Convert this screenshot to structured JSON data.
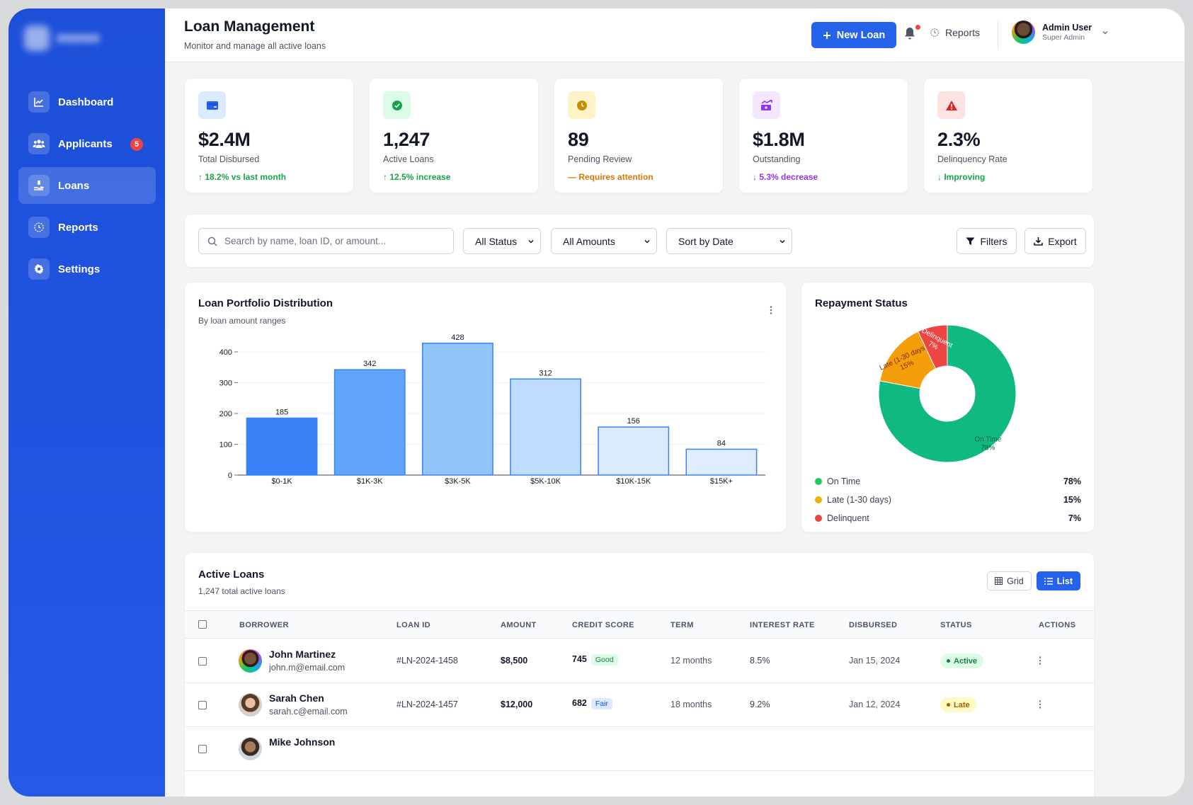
{
  "sidebar": {
    "items": [
      {
        "label": "Dashboard",
        "icon": "chart-line-icon"
      },
      {
        "label": "Applicants",
        "icon": "users-icon",
        "badge": "5"
      },
      {
        "label": "Loans",
        "icon": "hand-money-icon",
        "active": true
      },
      {
        "label": "Reports",
        "icon": "report-icon"
      },
      {
        "label": "Settings",
        "icon": "gear-icon"
      }
    ]
  },
  "header": {
    "title": "Loan Management",
    "subtitle": "Monitor and manage all active loans",
    "new_loan_label": "New Loan",
    "reports_label": "Reports",
    "user": {
      "name": "Admin User",
      "role": "Super Admin"
    }
  },
  "stats": [
    {
      "value": "$2.4M",
      "label": "Total Disbursed",
      "trend": "↑ 18.2% vs last month",
      "color": "#16a34a",
      "icon_bg": "#dbeafe",
      "icon": "wallet-icon"
    },
    {
      "value": "1,247",
      "label": "Active Loans",
      "trend": "↑ 12.5% increase",
      "color": "#16a34a",
      "icon_bg": "#dcfce7",
      "icon": "check-circle-icon"
    },
    {
      "value": "89",
      "label": "Pending Review",
      "trend": "— Requires attention",
      "color": "#d97706",
      "icon_bg": "#fef3c7",
      "icon": "clock-icon"
    },
    {
      "value": "$1.8M",
      "label": "Outstanding",
      "trend": "↓ 5.3% decrease",
      "color": "#9333ea",
      "icon_bg": "#f3e8ff",
      "icon": "money-chart-icon"
    },
    {
      "value": "2.3%",
      "label": "Delinquency Rate",
      "trend": "↓ Improving",
      "color": "#16a34a",
      "icon_bg": "#fee2e2",
      "icon": "warning-icon"
    }
  ],
  "filters": {
    "search_placeholder": "Search by name, loan ID, or amount...",
    "status": "All Status",
    "amounts": "All Amounts",
    "sort": "Sort by Date",
    "filters_label": "Filters",
    "export_label": "Export"
  },
  "portfolio": {
    "title": "Loan Portfolio Distribution",
    "subtitle": "By loan amount ranges"
  },
  "repayment": {
    "title": "Repayment Status"
  },
  "chart_data": [
    {
      "type": "bar",
      "title": "Loan Portfolio Distribution",
      "categories": [
        "$0-1K",
        "$1K-3K",
        "$3K-5K",
        "$5K-10K",
        "$10K-15K",
        "$15K+"
      ],
      "values": [
        185,
        342,
        428,
        312,
        156,
        84
      ],
      "value_labels": [
        "185",
        "342",
        "428",
        "312",
        "156",
        "84"
      ],
      "colors": [
        "#3b82f6",
        "#60a5fa",
        "#93c5fd",
        "#bfdbfe",
        "#dbeafe",
        "#e0ecff"
      ],
      "yticks": [
        "0",
        "100",
        "200",
        "300",
        "400"
      ],
      "ylim": [
        0,
        400
      ],
      "grid": true
    },
    {
      "type": "pie",
      "title": "Repayment Status",
      "labels": [
        "On Time",
        "Late (1-30 days)",
        "Delinquent"
      ],
      "values": [
        78,
        15,
        7
      ],
      "pct_labels": [
        "78%",
        "15%",
        "7%"
      ],
      "colors": [
        "#10b981",
        "#f59e0b",
        "#ef4444"
      ],
      "donut": true
    }
  ],
  "table": {
    "title": "Active Loans",
    "subtitle": "1,247 total active loans",
    "grid_label": "Grid",
    "list_label": "List",
    "columns": [
      "BORROWER",
      "LOAN ID",
      "AMOUNT",
      "CREDIT SCORE",
      "TERM",
      "INTEREST RATE",
      "DISBURSED",
      "STATUS",
      "ACTIONS"
    ],
    "rows": [
      {
        "name": "John Martinez",
        "email": "john.m@email.com",
        "loan_id": "#LN-2024-1458",
        "amount": "$8,500",
        "score": "745",
        "score_label": "Good",
        "term": "12 months",
        "rate": "8.5%",
        "disbursed": "Jan 15, 2024",
        "status": "Active"
      },
      {
        "name": "Sarah Chen",
        "email": "sarah.c@email.com",
        "loan_id": "#LN-2024-1457",
        "amount": "$12,000",
        "score": "682",
        "score_label": "Fair",
        "term": "18 months",
        "rate": "9.2%",
        "disbursed": "Jan 12, 2024",
        "status": "Late"
      },
      {
        "name": "Mike Johnson",
        "email": "",
        "loan_id": "",
        "amount": "",
        "score": "",
        "score_label": "",
        "term": "",
        "rate": "",
        "disbursed": "",
        "status": ""
      }
    ]
  }
}
